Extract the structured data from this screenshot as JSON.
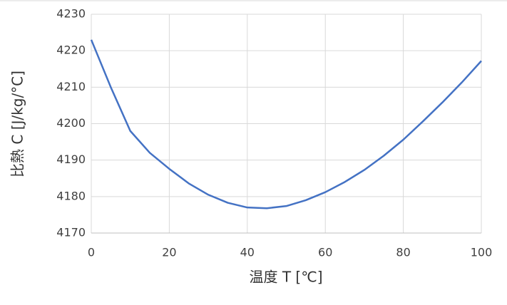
{
  "chart_data": {
    "type": "line",
    "x_label": "温度 T [℃]",
    "y_label": "比熱 C [J/kg/°C]",
    "x": [
      0,
      5,
      10,
      15,
      20,
      25,
      30,
      35,
      40,
      45,
      50,
      55,
      60,
      65,
      70,
      75,
      80,
      85,
      90,
      95,
      100
    ],
    "series": [
      {
        "color": "#4472c4",
        "values": [
          4223,
          4210,
          4198,
          4192,
          4187.6,
          4183.6,
          4180.5,
          4178.3,
          4177.0,
          4176.8,
          4177.4,
          4179.0,
          4181.2,
          4184.0,
          4187.3,
          4191.2,
          4195.6,
          4200.6,
          4205.8,
          4211.3,
          4217.2
        ]
      }
    ],
    "xlim": [
      0,
      100
    ],
    "xticks": [
      0,
      20,
      40,
      60,
      80,
      100
    ],
    "ylim": [
      4170,
      4230
    ],
    "yticks": [
      4170,
      4180,
      4190,
      4200,
      4210,
      4220,
      4230
    ],
    "grid": true
  }
}
